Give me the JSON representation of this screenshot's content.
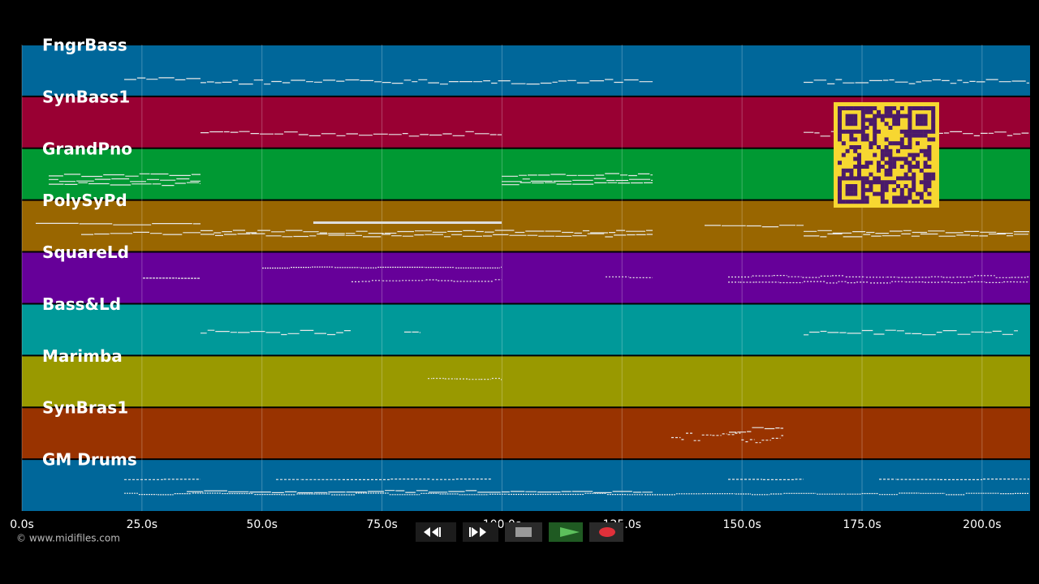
{
  "tracks": [
    {
      "name": "FngrBass",
      "color": "#00679a"
    },
    {
      "name": "SynBass1",
      "color": "#990033"
    },
    {
      "name": "GrandPno",
      "color": "#009933"
    },
    {
      "name": "PolySyPd",
      "color": "#996600"
    },
    {
      "name": "SquareLd",
      "color": "#660099"
    },
    {
      "name": "Bass&Ld",
      "color": "#009999"
    },
    {
      "name": "Marimba",
      "color": "#999900"
    },
    {
      "name": "SynBras1",
      "color": "#993300"
    },
    {
      "name": "GM Drums",
      "color": "#00679a"
    }
  ],
  "time_axis": {
    "xlim": [
      0,
      210
    ],
    "ticks": [
      {
        "value": 0,
        "label": "0.0s"
      },
      {
        "value": 25,
        "label": "25.0s"
      },
      {
        "value": 50,
        "label": "50.0s"
      },
      {
        "value": 75,
        "label": "75.0s"
      },
      {
        "value": 100,
        "label": "100.0s"
      },
      {
        "value": 125,
        "label": "125.0s"
      },
      {
        "value": 150,
        "label": "150.0s"
      },
      {
        "value": 175,
        "label": "175.0s"
      },
      {
        "value": 200,
        "label": "200.0s"
      }
    ]
  },
  "footer": "© www.midifiles.com"
}
